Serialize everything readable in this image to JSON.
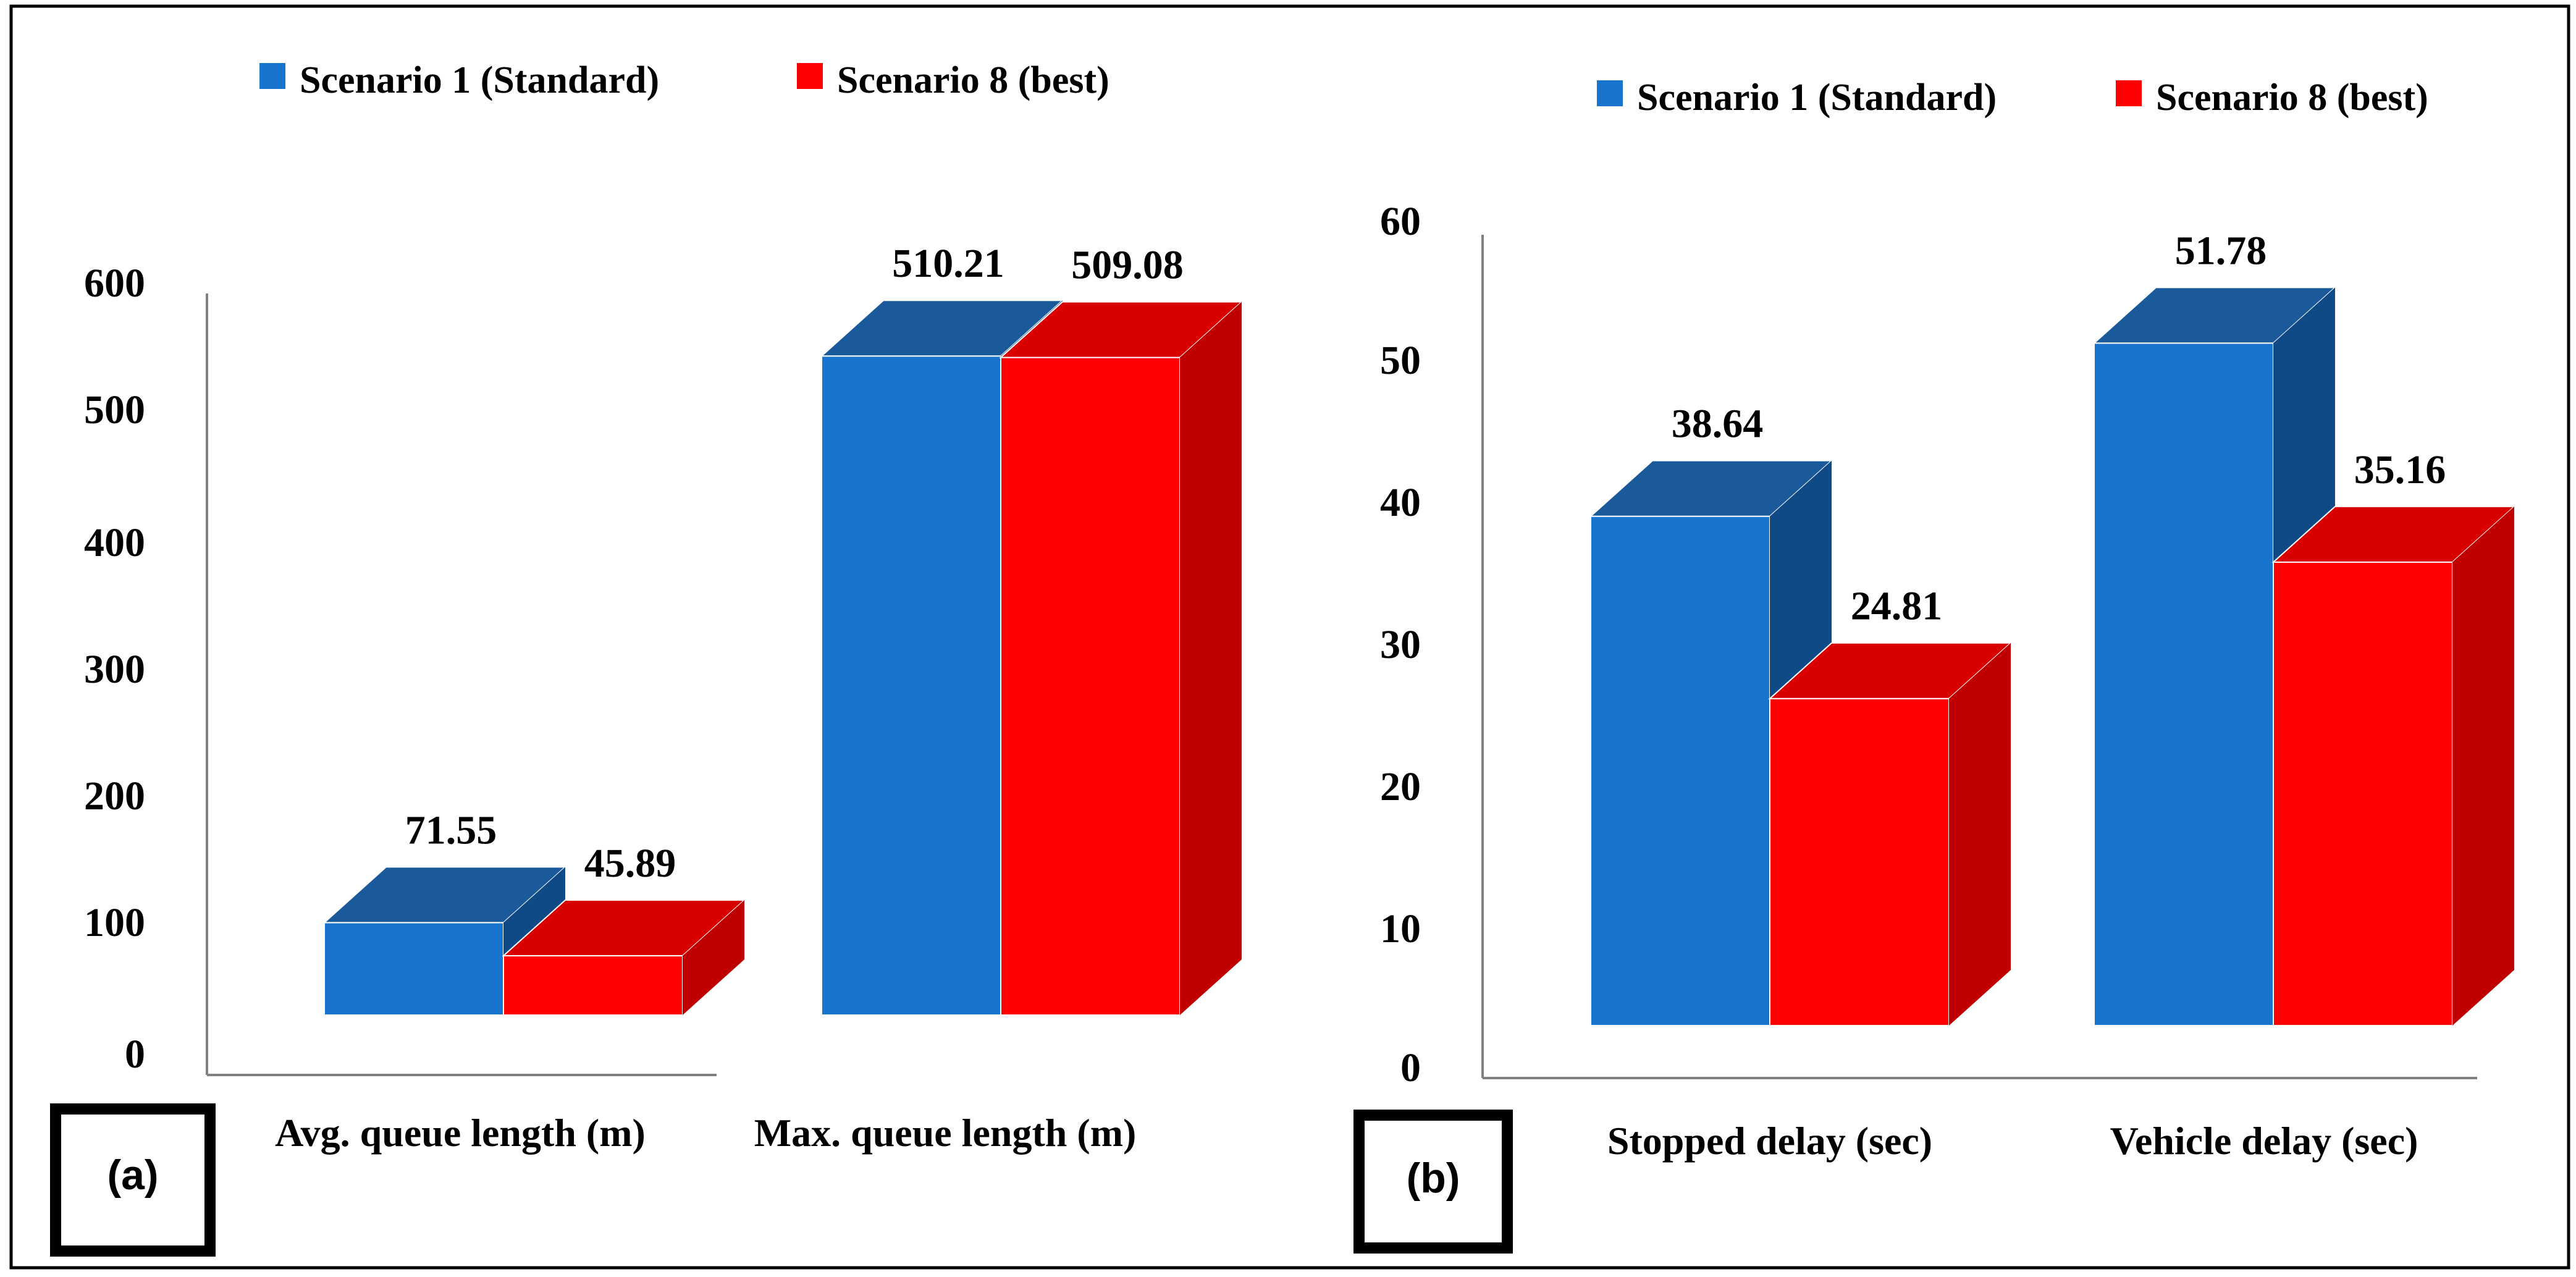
{
  "colors": {
    "blue_front": "#1874CD",
    "blue_top": "#1A5A9A",
    "blue_side": "#0F4A86",
    "red_front": "#FF0000",
    "red_top": "#D90000",
    "red_side": "#C00000",
    "axis": "#808080",
    "text": "#000000"
  },
  "chart_data": [
    {
      "type": "bar",
      "panel_label": "(a)",
      "categories": [
        "Avg. queue length (m)",
        "Max. queue length (m)"
      ],
      "series": [
        {
          "name": "Scenario 1 (Standard)",
          "values": [
            71.55,
            510.21
          ]
        },
        {
          "name": "Scenario 8 (best)",
          "values": [
            45.89,
            509.08
          ]
        }
      ],
      "data_labels": [
        [
          "71.55",
          "45.89"
        ],
        [
          "510.21",
          "509.08"
        ]
      ],
      "yticks": [
        "0",
        "100",
        "200",
        "300",
        "400",
        "500",
        "600"
      ],
      "ylim": [
        0,
        600
      ],
      "legend_position": "top",
      "xlabel": "",
      "ylabel": "",
      "grid": false
    },
    {
      "type": "bar",
      "panel_label": "(b)",
      "categories": [
        "Stopped delay (sec)",
        "Vehicle delay (sec)"
      ],
      "series": [
        {
          "name": "Scenario 1 (Standard)",
          "values": [
            38.64,
            51.78
          ]
        },
        {
          "name": "Scenario 8 (best)",
          "values": [
            24.81,
            35.16
          ]
        }
      ],
      "data_labels": [
        [
          "38.64",
          "24.81"
        ],
        [
          "51.78",
          "35.16"
        ]
      ],
      "yticks": [
        "0",
        "10",
        "20",
        "30",
        "40",
        "50",
        "60"
      ],
      "ylim": [
        0,
        60
      ],
      "legend_position": "top",
      "xlabel": "",
      "ylabel": "",
      "grid": false
    }
  ]
}
